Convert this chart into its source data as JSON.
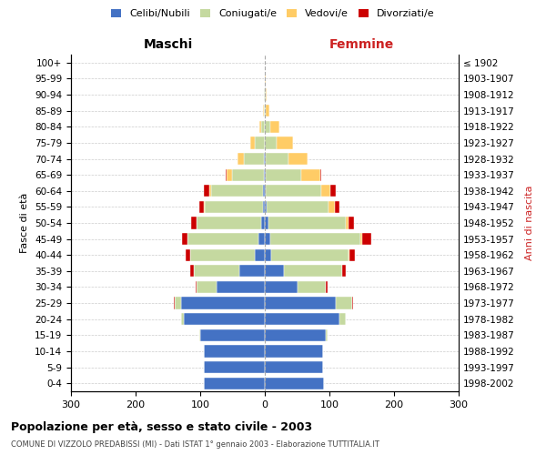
{
  "age_groups": [
    "0-4",
    "5-9",
    "10-14",
    "15-19",
    "20-24",
    "25-29",
    "30-34",
    "35-39",
    "40-44",
    "45-49",
    "50-54",
    "55-59",
    "60-64",
    "65-69",
    "70-74",
    "75-79",
    "80-84",
    "85-89",
    "90-94",
    "95-99",
    "100+"
  ],
  "birth_years": [
    "1998-2002",
    "1993-1997",
    "1988-1992",
    "1983-1987",
    "1978-1982",
    "1973-1977",
    "1968-1972",
    "1963-1967",
    "1958-1962",
    "1953-1957",
    "1948-1952",
    "1943-1947",
    "1938-1942",
    "1933-1937",
    "1928-1932",
    "1923-1927",
    "1918-1922",
    "1913-1917",
    "1908-1912",
    "1903-1907",
    "≤ 1902"
  ],
  "male": {
    "celibi": [
      95,
      95,
      95,
      100,
      125,
      130,
      75,
      40,
      15,
      10,
      5,
      3,
      3,
      1,
      2,
      0,
      0,
      0,
      0,
      0,
      0
    ],
    "coniugati": [
      0,
      0,
      0,
      2,
      5,
      10,
      30,
      70,
      100,
      110,
      100,
      90,
      80,
      50,
      30,
      15,
      5,
      2,
      1,
      0,
      0
    ],
    "vedovi": [
      0,
      0,
      0,
      0,
      0,
      0,
      0,
      0,
      0,
      0,
      1,
      1,
      3,
      8,
      10,
      8,
      3,
      1,
      0,
      0,
      0
    ],
    "divorziati": [
      0,
      0,
      0,
      0,
      0,
      1,
      2,
      5,
      8,
      8,
      8,
      8,
      8,
      2,
      0,
      0,
      0,
      0,
      0,
      0,
      0
    ]
  },
  "female": {
    "nubili": [
      92,
      90,
      90,
      95,
      115,
      110,
      50,
      30,
      10,
      8,
      5,
      3,
      2,
      1,
      1,
      0,
      0,
      0,
      0,
      0,
      0
    ],
    "coniugate": [
      0,
      0,
      0,
      2,
      10,
      25,
      45,
      90,
      120,
      140,
      120,
      95,
      85,
      55,
      35,
      18,
      8,
      2,
      1,
      0,
      0
    ],
    "vedove": [
      0,
      0,
      0,
      0,
      0,
      0,
      0,
      0,
      1,
      2,
      5,
      10,
      15,
      30,
      30,
      25,
      15,
      5,
      2,
      1,
      0
    ],
    "divorziate": [
      0,
      0,
      0,
      0,
      0,
      1,
      2,
      5,
      8,
      15,
      8,
      8,
      8,
      2,
      0,
      0,
      0,
      0,
      0,
      0,
      0
    ]
  },
  "colors": {
    "celibi": "#4472C4",
    "coniugati": "#C5D9A0",
    "vedovi": "#FFCC66",
    "divorziati": "#CC0000"
  },
  "xlim": 300,
  "title": "Popolazione per età, sesso e stato civile - 2003",
  "subtitle": "COMUNE DI VIZZOLO PREDABISSI (MI) - Dati ISTAT 1° gennaio 2003 - Elaborazione TUTTITALIA.IT",
  "ylabel_left": "Fasce di età",
  "ylabel_right": "Anni di nascita",
  "xlabel_left": "Maschi",
  "xlabel_right": "Femmine",
  "bg_color": "#FFFFFF",
  "grid_color": "#CCCCCC"
}
